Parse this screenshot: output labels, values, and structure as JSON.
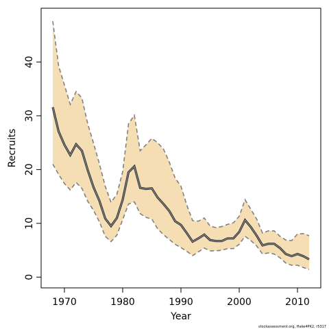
{
  "chart_data": {
    "type": "line",
    "xlabel": "Year",
    "ylabel": "Recruits",
    "credit": "stockassessment.org, Hake4PK2, r5317",
    "xlim": [
      1966,
      2014
    ],
    "ylim": [
      -2,
      50
    ],
    "xticks": [
      1970,
      1980,
      1990,
      2000,
      2010
    ],
    "yticks": [
      0,
      10,
      20,
      30,
      40
    ],
    "grid": false,
    "colors": {
      "band": "#f5deb3",
      "line": "#333333",
      "bound": "#808080"
    },
    "x": [
      1968,
      1969,
      1970,
      1971,
      1972,
      1973,
      1974,
      1975,
      1976,
      1977,
      1978,
      1979,
      1980,
      1981,
      1982,
      1983,
      1984,
      1985,
      1986,
      1987,
      1988,
      1989,
      1990,
      1991,
      1992,
      1993,
      1994,
      1995,
      1996,
      1997,
      1998,
      1999,
      2000,
      2001,
      2002,
      2003,
      2004,
      2005,
      2006,
      2007,
      2008,
      2009,
      2010,
      2011,
      2012
    ],
    "series": [
      {
        "values": [
          31.6,
          27.1,
          24.6,
          22.7,
          24.7,
          23.5,
          19.9,
          16.7,
          14.2,
          10.9,
          9.5,
          11.0,
          14.4,
          19.5,
          20.6,
          16.6,
          16.4,
          16.5,
          14.8,
          13.6,
          12.3,
          10.4,
          9.7,
          8.2,
          6.6,
          7.2,
          7.9,
          6.9,
          6.7,
          6.7,
          7.2,
          7.2,
          8.4,
          10.6,
          9.3,
          7.7,
          5.9,
          6.2,
          6.2,
          5.4,
          4.3,
          3.9,
          4.3,
          3.9,
          3.3
        ]
      },
      {
        "values": [
          47.6,
          39.3,
          35.7,
          32.1,
          34.5,
          33.3,
          28.5,
          24.9,
          21.1,
          16.9,
          13.9,
          15.4,
          19.6,
          28.5,
          30.1,
          23.5,
          24.6,
          25.8,
          25.0,
          23.8,
          21.4,
          18.4,
          16.9,
          13.4,
          10.5,
          10.4,
          11.0,
          9.5,
          9.2,
          9.4,
          9.8,
          10.1,
          11.3,
          14.4,
          12.6,
          10.8,
          8.2,
          8.6,
          8.6,
          7.6,
          6.9,
          6.8,
          8.0,
          8.1,
          7.7
        ]
      },
      {
        "values": [
          21.0,
          19.1,
          17.4,
          16.2,
          17.6,
          16.5,
          14.1,
          12.4,
          10.3,
          7.6,
          6.6,
          7.8,
          10.7,
          13.6,
          14.0,
          11.8,
          11.1,
          10.8,
          9.0,
          7.9,
          7.0,
          6.1,
          5.5,
          4.8,
          4.0,
          4.7,
          5.4,
          4.9,
          4.9,
          5.0,
          5.3,
          5.3,
          6.1,
          7.6,
          6.8,
          5.8,
          4.3,
          4.5,
          4.3,
          3.6,
          2.6,
          2.2,
          2.2,
          1.8,
          1.4
        ]
      }
    ]
  }
}
